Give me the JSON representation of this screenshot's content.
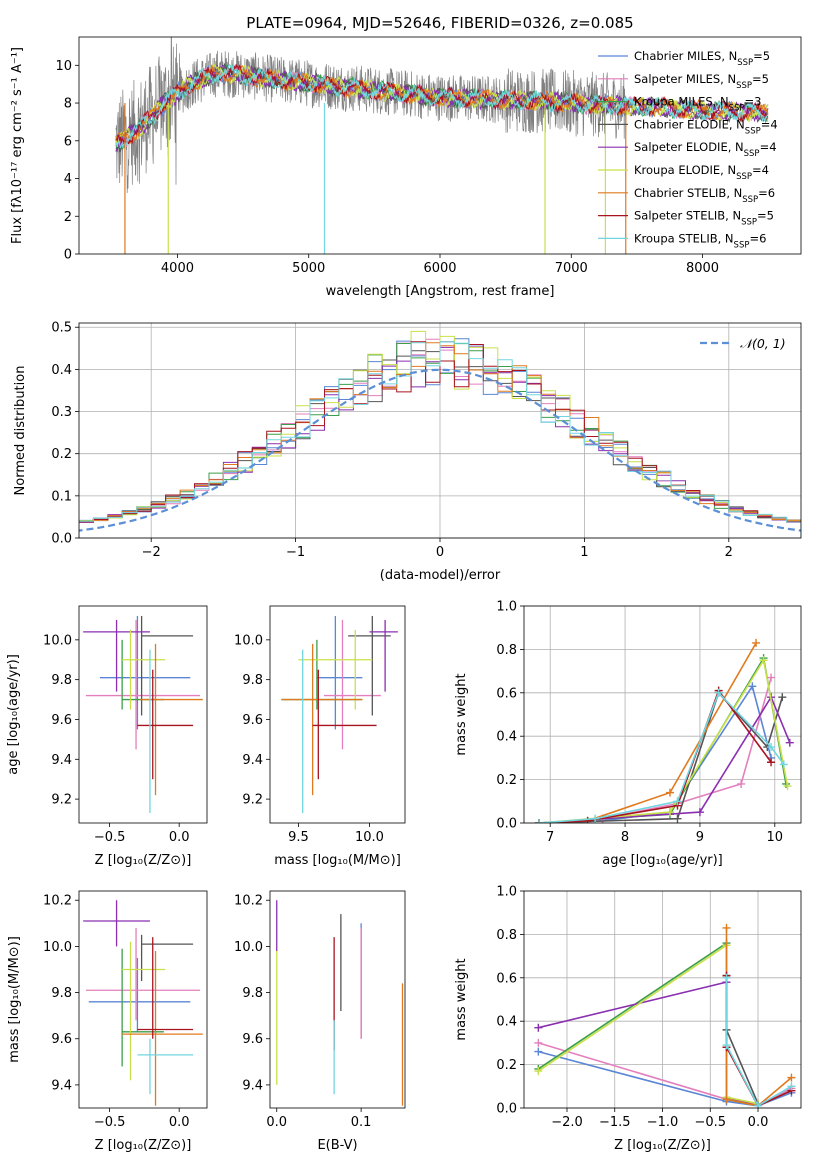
{
  "colors": {
    "Chabrier MILES": "#5b86d6",
    "Salpeter MILES": "#e37fbd",
    "Kroupa MILES": "#3b9e4a",
    "Chabrier ELODIE": "#555555",
    "Salpeter ELODIE": "#8a2fb0",
    "Kroupa ELODIE": "#c9e04a",
    "Chabrier STELIB": "#e07a1f",
    "Salpeter STELIB": "#a8141f",
    "Kroupa STELIB": "#72d6e0"
  },
  "chart_data": [
    {
      "type": "line",
      "title": "PLATE=0964, MJD=52646, FIBERID=0326, z=0.085",
      "xlabel": "wavelength [Angstrom, rest frame]",
      "ylabel": "Flux [fλ10⁻¹⁷ erg cm⁻² s⁻¹ A⁻¹]",
      "xlim": [
        3250,
        8750
      ],
      "ylim": [
        0,
        11.5
      ],
      "xticks": [
        4000,
        5000,
        6000,
        7000,
        8000
      ],
      "yticks": [
        0,
        2,
        4,
        6,
        8,
        10
      ],
      "grid": false,
      "legend_position": "top-right",
      "legend": [
        "Chabrier MILES, N_SSP=5",
        "Salpeter MILES, N_SSP=5",
        "Kroupa MILES, N_SSP=3",
        "Chabrier ELODIE, N_SSP=4",
        "Salpeter ELODIE, N_SSP=4",
        "Kroupa ELODIE, N_SSP=4",
        "Chabrier STELIB, N_SSP=6",
        "Salpeter STELIB, N_SSP=5",
        "Kroupa STELIB, N_SSP=6"
      ],
      "data_series": {
        "name": "data",
        "color": "#808080",
        "x_range": [
          3530,
          7420
        ],
        "level": 8.2,
        "noise": 2.5
      },
      "continuum": {
        "x": [
          3530,
          3700,
          3900,
          4100,
          4300,
          4500,
          4800,
          5200,
          5600,
          6000,
          6400,
          6800,
          7200,
          7600,
          8000,
          8400
        ],
        "y": [
          5.8,
          6.6,
          8.0,
          9.0,
          9.6,
          9.5,
          9.2,
          8.9,
          8.6,
          8.3,
          8.2,
          8.1,
          7.9,
          7.8,
          7.6,
          7.5
        ]
      }
    },
    {
      "type": "line",
      "xlabel": "(data-model)/error",
      "ylabel": "Normed distribution",
      "xlim": [
        -2.5,
        2.5
      ],
      "ylim": [
        0,
        0.51
      ],
      "xticks": [
        -2,
        -1,
        0,
        1,
        2
      ],
      "yticks": [
        0.0,
        0.1,
        0.2,
        0.3,
        0.4,
        0.5
      ],
      "grid": true,
      "legend_position": "top-right",
      "legend": [
        "𝒩(0, 1)"
      ],
      "gaussian": {
        "mean": 0,
        "sigma": 1,
        "color": "#5b8fd6"
      },
      "hist": {
        "bins": 50,
        "range": [
          -2.5,
          2.5
        ],
        "peak_bin_value": 0.49
      }
    },
    {
      "type": "scatter",
      "xlabel": "Z [log₁₀(Z/Z⊙)]",
      "ylabel": "age  [log₁₀(age/yr)]",
      "xlim": [
        -0.72,
        0.2
      ],
      "ylim": [
        9.08,
        10.17
      ],
      "xticks": [
        -0.5,
        0.0
      ],
      "yticks": [
        9.2,
        9.4,
        9.6,
        9.8,
        10.0
      ],
      "points": [
        {
          "s": "Chabrier MILES",
          "x": -0.3,
          "xe": [
            -0.57,
            0.08
          ],
          "y": 9.81,
          "ye": [
            9.55,
            10.12
          ]
        },
        {
          "s": "Salpeter MILES",
          "x": -0.31,
          "xe": [
            -0.67,
            0.15
          ],
          "y": 9.72,
          "ye": [
            9.45,
            10.1
          ]
        },
        {
          "s": "Kroupa MILES",
          "x": -0.41,
          "xe": [
            -0.41,
            -0.11
          ],
          "y": 9.7,
          "ye": [
            9.65,
            10.0
          ]
        },
        {
          "s": "Chabrier ELODIE",
          "x": -0.27,
          "xe": [
            -0.27,
            0.1
          ],
          "y": 10.02,
          "ye": [
            9.62,
            10.12
          ]
        },
        {
          "s": "Salpeter ELODIE",
          "x": -0.45,
          "xe": [
            -0.69,
            -0.21
          ],
          "y": 10.04,
          "ye": [
            9.74,
            10.1
          ]
        },
        {
          "s": "Kroupa ELODIE",
          "x": -0.35,
          "xe": [
            -0.41,
            -0.1
          ],
          "y": 9.9,
          "ye": [
            9.65,
            10.05
          ]
        },
        {
          "s": "Chabrier STELIB",
          "x": -0.17,
          "xe": [
            -0.28,
            0.17
          ],
          "y": 9.7,
          "ye": [
            9.22,
            9.98
          ]
        },
        {
          "s": "Salpeter STELIB",
          "x": -0.19,
          "xe": [
            -0.3,
            0.1
          ],
          "y": 9.57,
          "ye": [
            9.3,
            9.85
          ]
        },
        {
          "s": "Kroupa STELIB",
          "x": -0.21,
          "xe": [
            -0.21,
            -0.21
          ],
          "y": 9.6,
          "ye": [
            9.13,
            9.95
          ]
        }
      ]
    },
    {
      "type": "scatter",
      "xlabel": "mass [log₁₀(M/M⊙)]",
      "ylabel": "",
      "xlim": [
        9.3,
        10.25
      ],
      "ylim": [
        9.08,
        10.17
      ],
      "xticks": [
        9.5,
        10.0
      ],
      "yticks": [
        9.2,
        9.4,
        9.6,
        9.8,
        10.0
      ],
      "points": [
        {
          "s": "Chabrier MILES",
          "x": 9.76,
          "xe": [
            9.63,
            9.95
          ],
          "y": 9.81,
          "ye": [
            9.55,
            10.12
          ]
        },
        {
          "s": "Salpeter MILES",
          "x": 9.81,
          "xe": [
            9.68,
            10.08
          ],
          "y": 9.72,
          "ye": [
            9.45,
            10.1
          ]
        },
        {
          "s": "Kroupa MILES",
          "x": 9.63,
          "xe": [
            9.38,
            9.95
          ],
          "y": 9.7,
          "ye": [
            9.65,
            10.0
          ]
        },
        {
          "s": "Chabrier ELODIE",
          "x": 10.02,
          "xe": [
            9.85,
            10.15
          ],
          "y": 10.02,
          "ye": [
            9.62,
            10.12
          ]
        },
        {
          "s": "Salpeter ELODIE",
          "x": 10.11,
          "xe": [
            10.0,
            10.2
          ],
          "y": 10.04,
          "ye": [
            9.74,
            10.1
          ]
        },
        {
          "s": "Kroupa ELODIE",
          "x": 9.9,
          "xe": [
            9.5,
            10.02
          ],
          "y": 9.9,
          "ye": [
            9.65,
            10.05
          ]
        },
        {
          "s": "Chabrier STELIB",
          "x": 9.6,
          "xe": [
            9.38,
            9.95
          ],
          "y": 9.7,
          "ye": [
            9.22,
            9.98
          ]
        },
        {
          "s": "Salpeter STELIB",
          "x": 9.64,
          "xe": [
            9.6,
            10.05
          ],
          "y": 9.57,
          "ye": [
            9.3,
            9.85
          ]
        },
        {
          "s": "Kroupa STELIB",
          "x": 9.53,
          "xe": [
            9.53,
            9.53
          ],
          "y": 9.6,
          "ye": [
            9.13,
            9.95
          ]
        }
      ]
    },
    {
      "type": "line",
      "xlabel": "age  [log₁₀(age/yr)]",
      "ylabel": "mass weight",
      "xlim": [
        6.65,
        10.35
      ],
      "ylim": [
        0,
        1.0
      ],
      "xticks": [
        7,
        8,
        9,
        10
      ],
      "yticks": [
        0.0,
        0.2,
        0.4,
        0.6,
        0.8,
        1.0
      ],
      "grid": true,
      "series": [
        {
          "s": "Chabrier MILES",
          "x": [
            6.85,
            7.7,
            8.6,
            9.7,
            9.95
          ],
          "y": [
            0.0,
            0.01,
            0.05,
            0.63,
            0.3
          ]
        },
        {
          "s": "Salpeter MILES",
          "x": [
            6.85,
            7.7,
            8.7,
            9.55,
            9.95
          ],
          "y": [
            0.0,
            0.02,
            0.09,
            0.18,
            0.67
          ]
        },
        {
          "s": "Kroupa MILES",
          "x": [
            6.85,
            8.6,
            9.85,
            10.15
          ],
          "y": [
            0.0,
            0.04,
            0.76,
            0.18
          ]
        },
        {
          "s": "Chabrier ELODIE",
          "x": [
            6.85,
            8.7,
            9.25,
            9.9,
            10.1
          ],
          "y": [
            0.0,
            0.02,
            0.6,
            0.35,
            0.58
          ]
        },
        {
          "s": "Salpeter ELODIE",
          "x": [
            6.85,
            9.0,
            9.95,
            10.2
          ],
          "y": [
            0.0,
            0.05,
            0.58,
            0.37
          ]
        },
        {
          "s": "Kroupa ELODIE",
          "x": [
            6.85,
            8.6,
            9.85,
            10.17
          ],
          "y": [
            0.0,
            0.05,
            0.75,
            0.17
          ]
        },
        {
          "s": "Chabrier STELIB",
          "x": [
            6.85,
            7.5,
            8.6,
            9.75
          ],
          "y": [
            0.0,
            0.01,
            0.14,
            0.83
          ]
        },
        {
          "s": "Salpeter STELIB",
          "x": [
            6.85,
            7.5,
            8.7,
            9.25,
            9.95
          ],
          "y": [
            0.0,
            0.01,
            0.08,
            0.61,
            0.28
          ]
        },
        {
          "s": "Kroupa STELIB",
          "x": [
            6.85,
            7.6,
            8.7,
            9.25,
            9.95,
            10.12
          ],
          "y": [
            0.0,
            0.02,
            0.1,
            0.6,
            0.35,
            0.27
          ]
        }
      ]
    },
    {
      "type": "scatter",
      "xlabel": "Z [log₁₀(Z/Z⊙)]",
      "ylabel": "mass [log₁₀(M/M⊙)]",
      "xlim": [
        -0.72,
        0.2
      ],
      "ylim": [
        9.3,
        10.24
      ],
      "xticks": [
        -0.5,
        0.0
      ],
      "yticks": [
        9.4,
        9.6,
        9.8,
        10.0,
        10.2
      ],
      "points": [
        {
          "s": "Chabrier MILES",
          "x": -0.3,
          "xe": [
            -0.65,
            0.08
          ],
          "y": 9.76,
          "ye": [
            9.63,
            9.95
          ]
        },
        {
          "s": "Salpeter MILES",
          "x": -0.31,
          "xe": [
            -0.67,
            0.15
          ],
          "y": 9.81,
          "ye": [
            9.68,
            10.08
          ]
        },
        {
          "s": "Kroupa MILES",
          "x": -0.41,
          "xe": [
            -0.41,
            -0.11
          ],
          "y": 9.63,
          "ye": [
            9.48,
            9.99
          ]
        },
        {
          "s": "Chabrier ELODIE",
          "x": -0.27,
          "xe": [
            -0.27,
            0.1
          ],
          "y": 10.01,
          "ye": [
            9.85,
            10.05
          ]
        },
        {
          "s": "Salpeter ELODIE",
          "x": -0.45,
          "xe": [
            -0.69,
            -0.21
          ],
          "y": 10.11,
          "ye": [
            10.0,
            10.2
          ]
        },
        {
          "s": "Kroupa ELODIE",
          "x": -0.35,
          "xe": [
            -0.41,
            -0.1
          ],
          "y": 9.9,
          "ye": [
            9.42,
            10.02
          ]
        },
        {
          "s": "Chabrier STELIB",
          "x": -0.17,
          "xe": [
            -0.41,
            0.17
          ],
          "y": 9.62,
          "ye": [
            9.31,
            9.98
          ]
        },
        {
          "s": "Salpeter STELIB",
          "x": -0.19,
          "xe": [
            -0.3,
            0.1
          ],
          "y": 9.64,
          "ye": [
            9.6,
            10.04
          ]
        },
        {
          "s": "Kroupa STELIB",
          "x": -0.21,
          "xe": [
            -0.3,
            0.1
          ],
          "y": 9.53,
          "ye": [
            9.36,
            9.6
          ]
        }
      ]
    },
    {
      "type": "scatter",
      "xlabel": "E(B-V)",
      "ylabel": "",
      "xlim": [
        -0.008,
        0.152
      ],
      "ylim": [
        9.3,
        10.24
      ],
      "xticks": [
        0.0,
        0.1
      ],
      "yticks": [
        9.4,
        9.6,
        9.8,
        10.0,
        10.2
      ],
      "points": [
        {
          "s": "Chabrier MILES",
          "x": 0.1,
          "ye": [
            9.6,
            10.1
          ]
        },
        {
          "s": "Salpeter MILES",
          "x": 0.1,
          "ye": [
            9.6,
            10.08
          ]
        },
        {
          "s": "Kroupa ELODIE",
          "x": 0.0,
          "ye": [
            9.4,
            9.98
          ]
        },
        {
          "s": "Salpeter ELODIE",
          "x": 0.0,
          "ye": [
            9.98,
            10.2
          ]
        },
        {
          "s": "Chabrier ELODIE",
          "x": 0.076,
          "ye": [
            9.72,
            10.14
          ]
        },
        {
          "s": "Salpeter STELIB",
          "x": 0.068,
          "ye": [
            9.55,
            10.04
          ]
        },
        {
          "s": "Kroupa STELIB",
          "x": 0.068,
          "ye": [
            9.36,
            9.68
          ]
        },
        {
          "s": "Chabrier STELIB",
          "x": 0.149,
          "ye": [
            9.31,
            9.84
          ]
        }
      ]
    },
    {
      "type": "line",
      "xlabel": "Z [log₁₀(Z/Z⊙)]",
      "ylabel": "mass weight",
      "xlim": [
        -2.45,
        0.45
      ],
      "ylim": [
        0,
        1.0
      ],
      "xticks": [
        -2.0,
        -1.5,
        -1.0,
        -0.5,
        0.0
      ],
      "yticks": [
        0.0,
        0.2,
        0.4,
        0.6,
        0.8,
        1.0
      ],
      "grid": true,
      "series": [
        {
          "s": "Chabrier MILES",
          "x": [
            -2.3,
            -0.33,
            0.0,
            0.35
          ],
          "y": [
            0.26,
            0.03,
            0.01,
            0.07
          ]
        },
        {
          "s": "Salpeter MILES",
          "x": [
            -2.3,
            -0.33,
            0.0,
            0.35
          ],
          "y": [
            0.3,
            0.04,
            0.01,
            0.09
          ]
        },
        {
          "s": "Kroupa MILES",
          "x": [
            -2.3,
            -0.33,
            -0.33,
            0.0
          ],
          "y": [
            0.18,
            0.76,
            0.04,
            0.01
          ]
        },
        {
          "s": "Chabrier ELODIE",
          "x": [
            -0.33,
            -0.33,
            0.0
          ],
          "y": [
            0.61,
            0.36,
            0.02
          ]
        },
        {
          "s": "Salpeter ELODIE",
          "x": [
            -2.3,
            -0.33,
            -0.33,
            0.0
          ],
          "y": [
            0.37,
            0.58,
            0.05,
            0.01
          ]
        },
        {
          "s": "Kroupa ELODIE",
          "x": [
            -2.3,
            -0.33,
            -0.33,
            0.0
          ],
          "y": [
            0.17,
            0.75,
            0.05,
            0.02
          ]
        },
        {
          "s": "Chabrier STELIB",
          "x": [
            -0.33,
            -0.33,
            0.0,
            0.35
          ],
          "y": [
            0.83,
            0.04,
            0.01,
            0.14
          ]
        },
        {
          "s": "Salpeter STELIB",
          "x": [
            -0.33,
            -0.33,
            0.0,
            0.35
          ],
          "y": [
            0.61,
            0.28,
            0.01,
            0.08
          ]
        },
        {
          "s": "Kroupa STELIB",
          "x": [
            -0.33,
            -0.33,
            0.0,
            0.35
          ],
          "y": [
            0.6,
            0.29,
            0.01,
            0.1
          ]
        }
      ]
    }
  ]
}
